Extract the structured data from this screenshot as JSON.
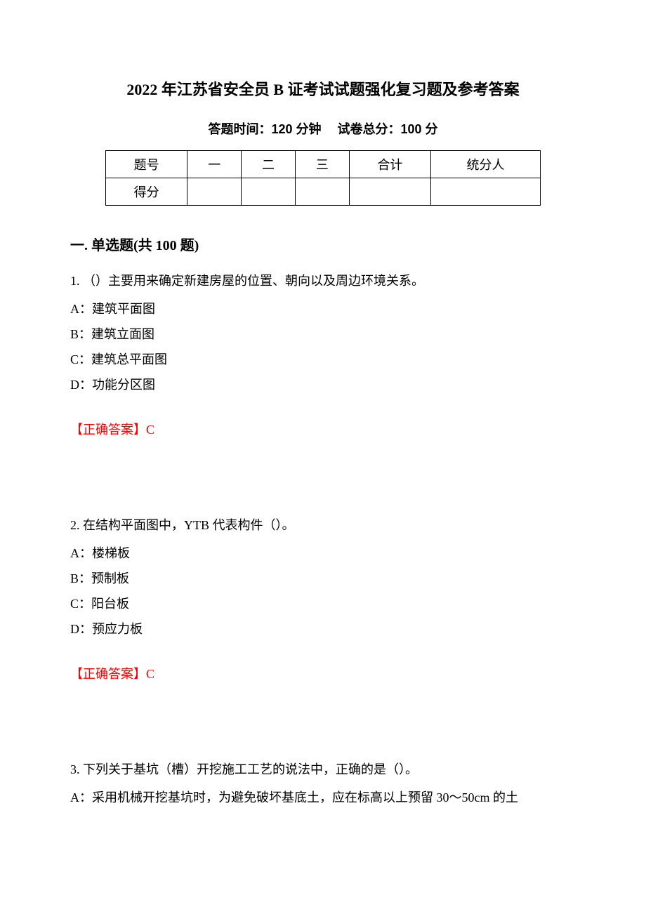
{
  "title": "2022 年江苏省安全员 B 证考试试题强化复习题及参考答案",
  "subtitle": "答题时间：120 分钟　 试卷总分：100 分",
  "score_table": {
    "columns": [
      "题号",
      "一",
      "二",
      "三",
      "合计",
      "统分人"
    ],
    "row_label": "得分",
    "column_widths": [
      "16%",
      "16%",
      "16%",
      "16%",
      "16%",
      "20%"
    ],
    "border_color": "#000000",
    "background_color": "#ffffff",
    "font_size_pt": 14
  },
  "section_heading": "一. 单选题(共 100 题)",
  "questions": [
    {
      "number": "1.",
      "text": "（）主要用来确定新建房屋的位置、朝向以及周边环境关系。",
      "options": [
        {
          "label": "A：",
          "text": "建筑平面图"
        },
        {
          "label": "B：",
          "text": "建筑立面图"
        },
        {
          "label": "C：",
          "text": "建筑总平面图"
        },
        {
          "label": "D：",
          "text": "功能分区图"
        }
      ],
      "answer_label": "【正确答案】",
      "answer_value": "C"
    },
    {
      "number": "2.",
      "text": "在结构平面图中，YTB 代表构件（）。",
      "options": [
        {
          "label": "A：",
          "text": "楼梯板"
        },
        {
          "label": "B：",
          "text": "预制板"
        },
        {
          "label": "C：",
          "text": "阳台板"
        },
        {
          "label": "D：",
          "text": "预应力板"
        }
      ],
      "answer_label": "【正确答案】",
      "answer_value": "C"
    },
    {
      "number": "3.",
      "text": "下列关于基坑（槽）开挖施工工艺的说法中，正确的是（）。",
      "options": [
        {
          "label": "A：",
          "text": "采用机械开挖基坑时，为避免破坏基底土，应在标高以上预留 30～50cm 的土"
        }
      ],
      "answer_label": "",
      "answer_value": ""
    }
  ],
  "styles": {
    "page_background": "#ffffff",
    "text_color": "#000000",
    "answer_color": "#ff0000",
    "title_fontsize_pt": 16,
    "body_fontsize_pt": 14,
    "line_height": 2.0
  }
}
